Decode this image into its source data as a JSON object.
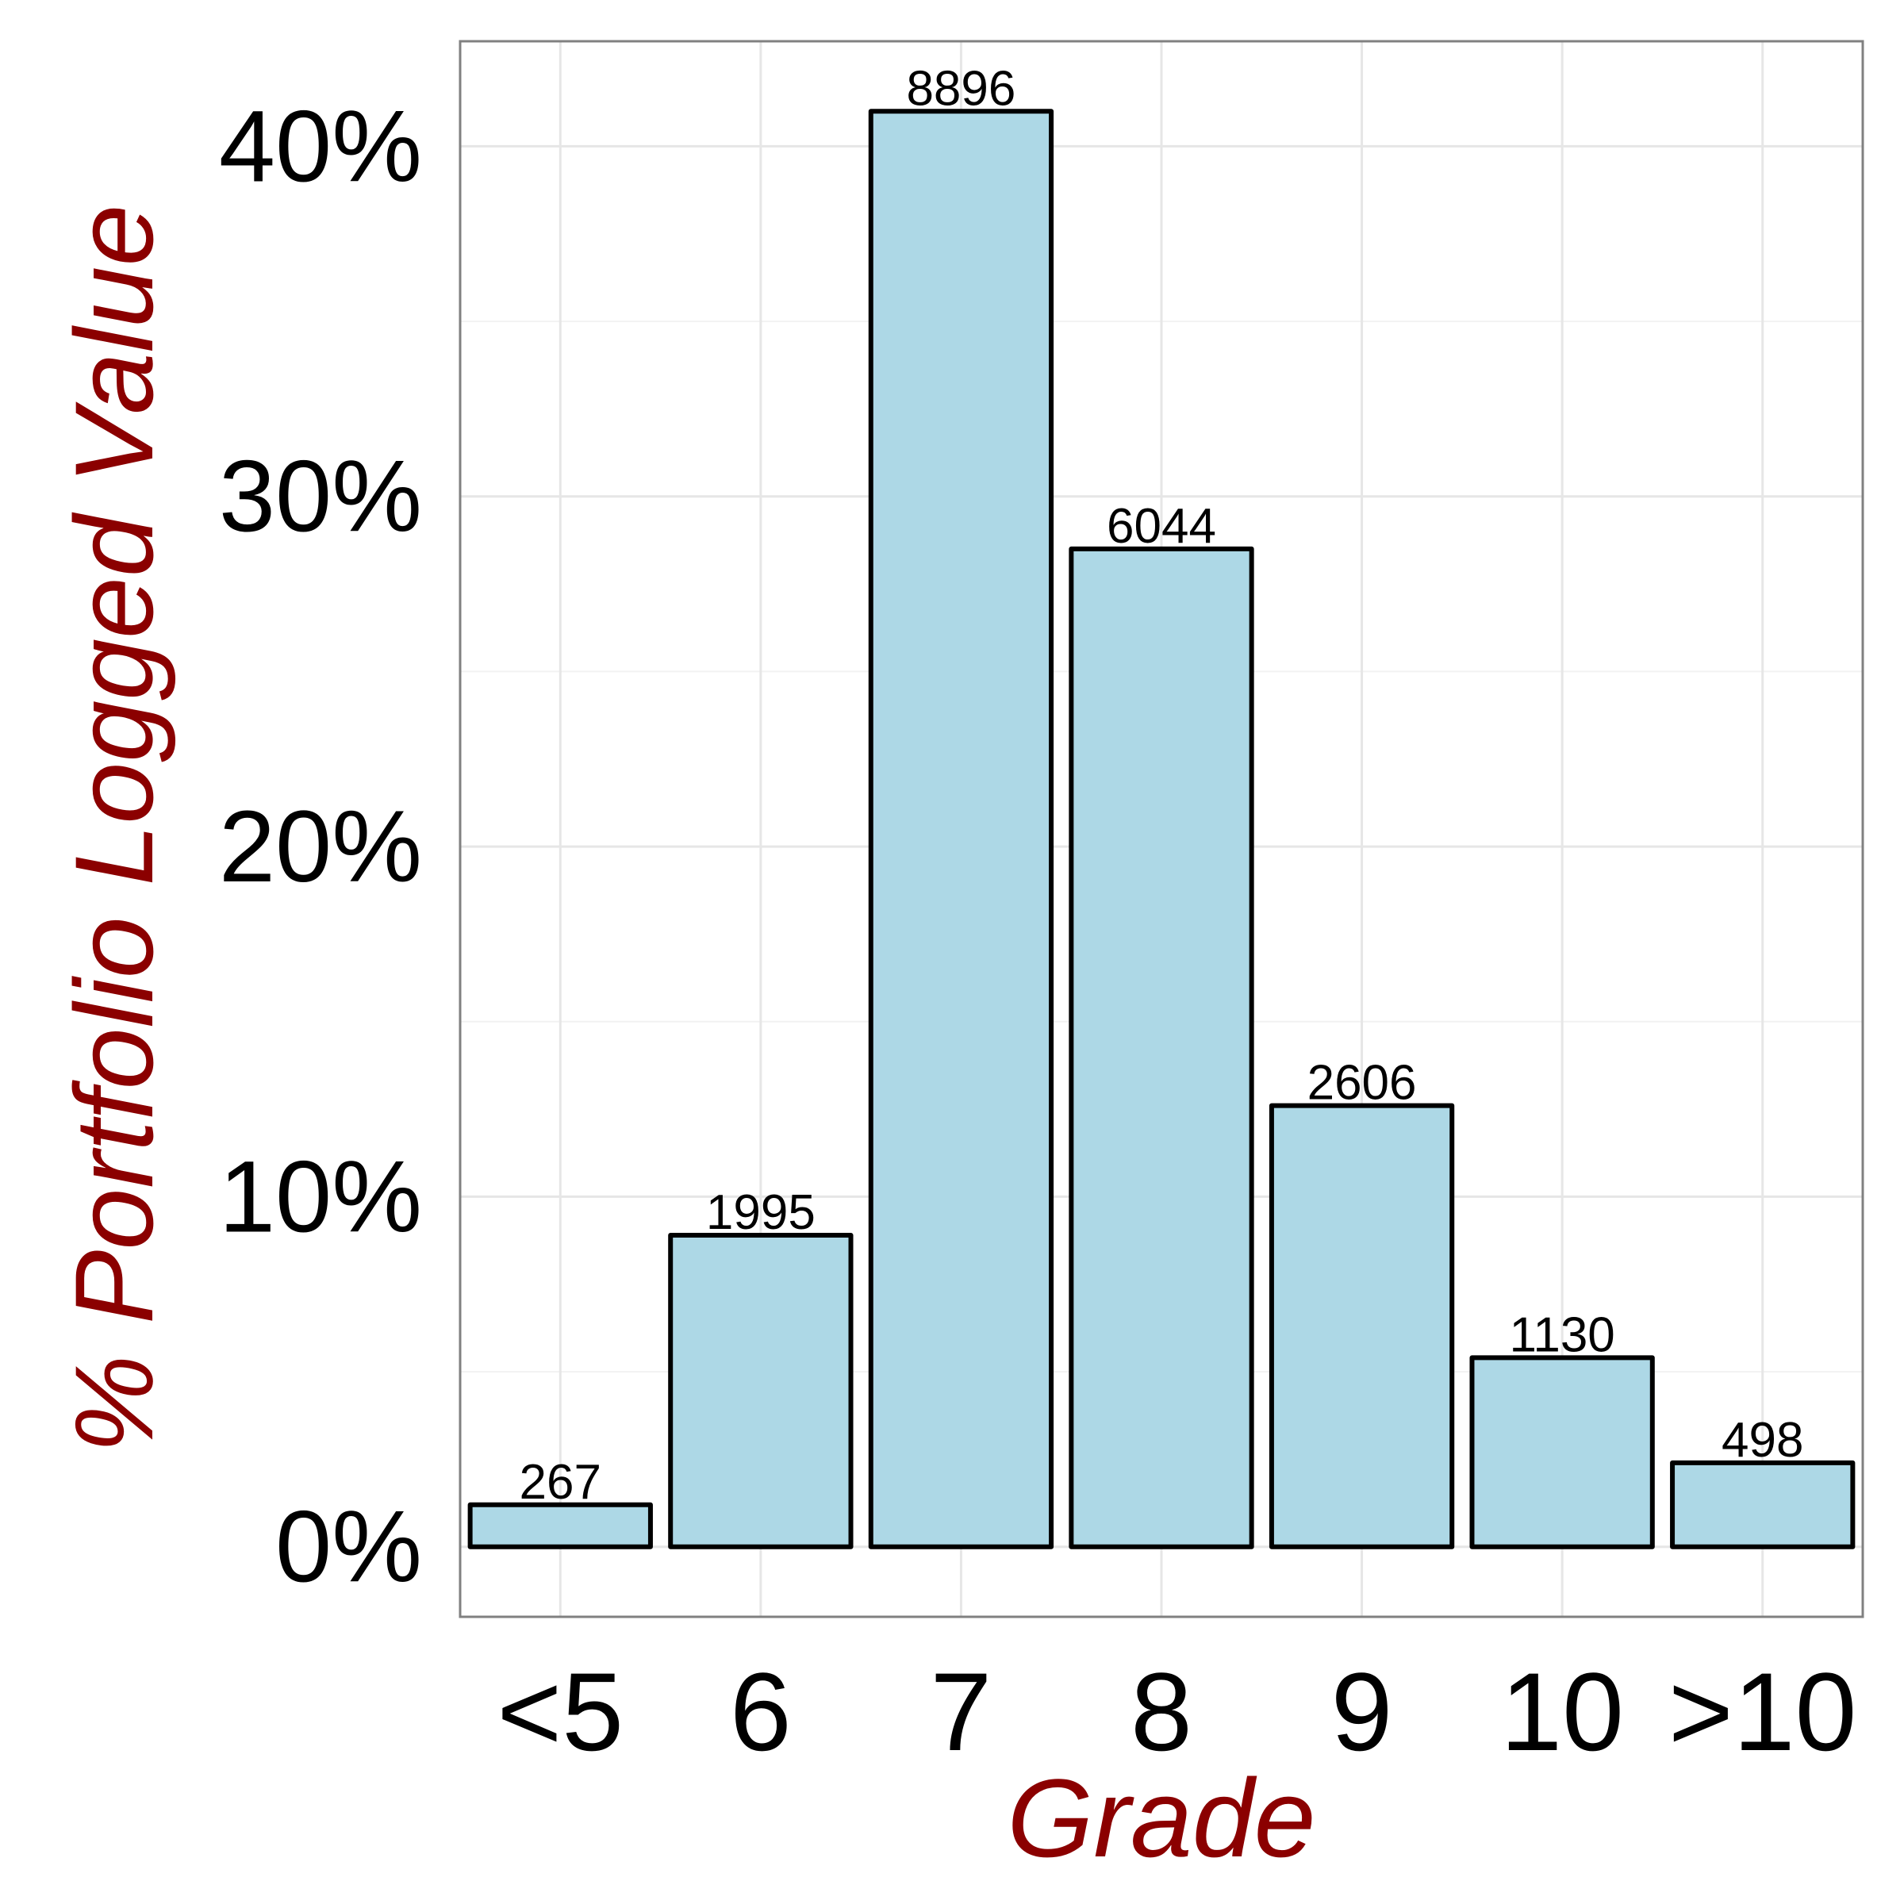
{
  "chart_data": {
    "type": "bar",
    "xlabel": "Grade",
    "ylabel": "% Portfolio Logged Value",
    "categories": [
      "<5",
      "6",
      "7",
      "8",
      "9",
      "10",
      ">10"
    ],
    "values": [
      1.2,
      8.9,
      41.0,
      28.5,
      12.6,
      5.4,
      2.4
    ],
    "bar_labels": [
      "267",
      "1995",
      "8896",
      "6044",
      "2606",
      "1130",
      "498"
    ],
    "ylim": [
      -2,
      43
    ],
    "yticks": [
      0,
      10,
      20,
      30,
      40
    ],
    "ytick_labels": [
      "0%",
      "10%",
      "20%",
      "30%",
      "40%"
    ],
    "grid": true,
    "colors": {
      "bar_fill": "#add8e6",
      "bar_stroke": "#000000",
      "axis_title": "#8b0000",
      "grid": "#e6e6e6",
      "panel_border": "#808080"
    }
  }
}
